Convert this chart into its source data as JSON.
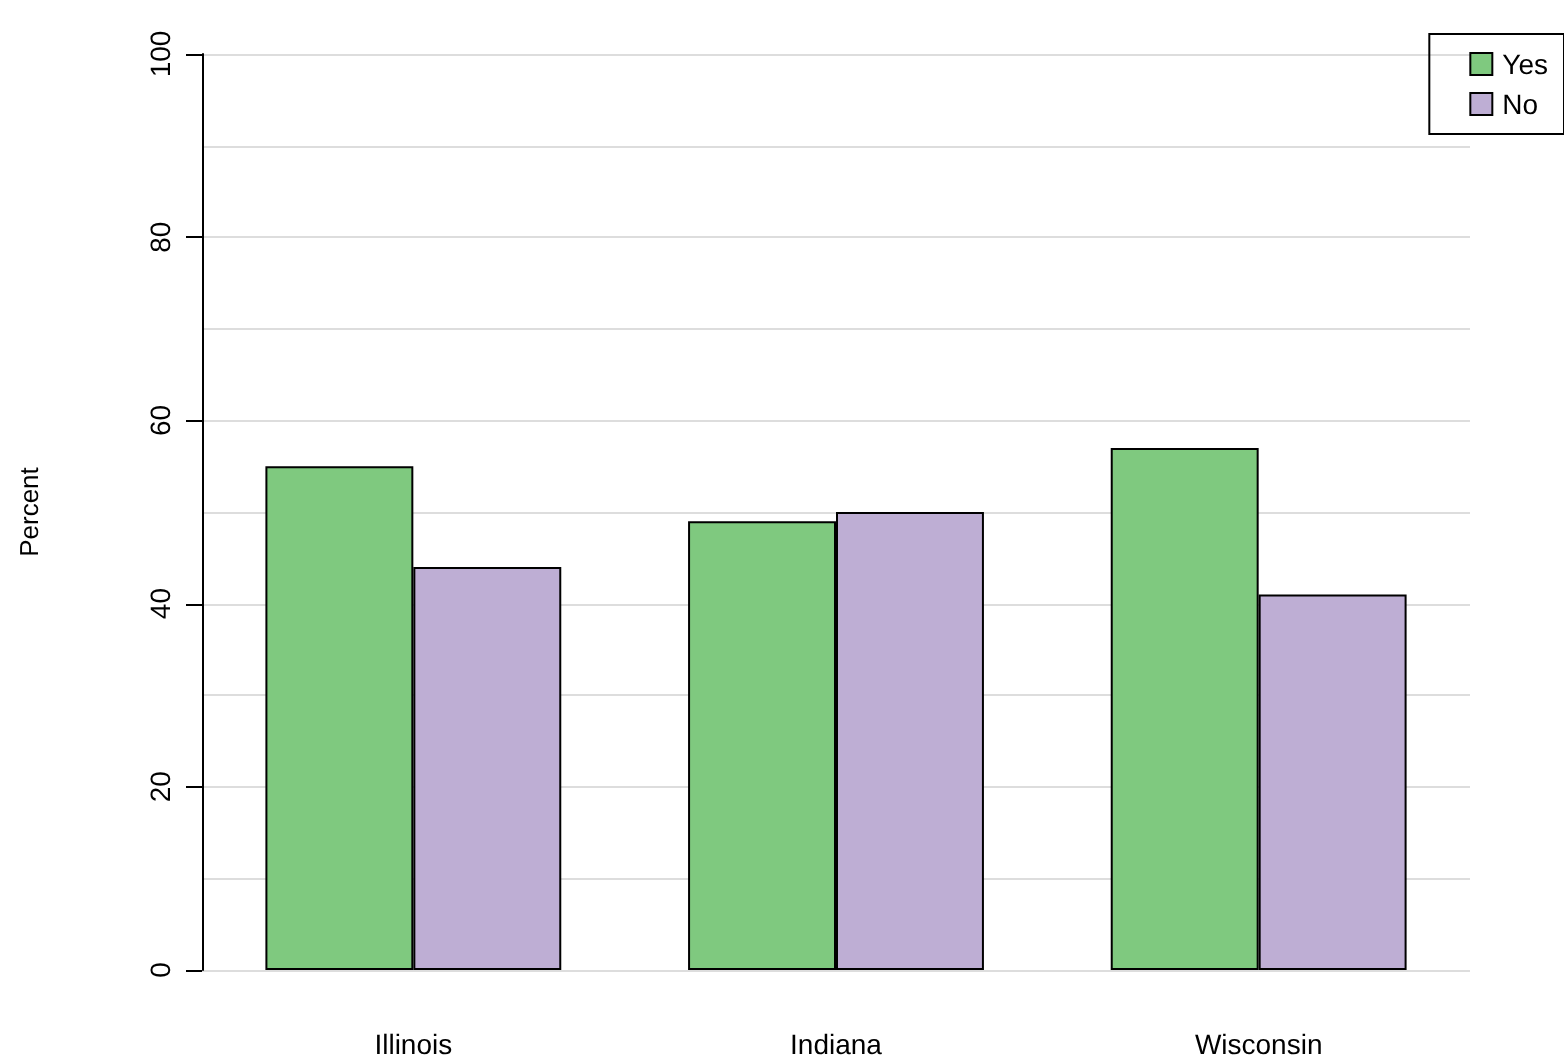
{
  "chart_data": {
    "type": "bar",
    "ylabel": "Percent",
    "categories": [
      "Illinois",
      "Indiana",
      "Wisconsin"
    ],
    "series": [
      {
        "name": "Yes",
        "color": "#7fc97f",
        "values": [
          55,
          49,
          57
        ]
      },
      {
        "name": "No",
        "color": "#beaed4",
        "values": [
          44,
          50,
          41
        ]
      }
    ],
    "ylim": [
      0,
      100
    ],
    "yticks": [
      0,
      {
        "value": 10,
        "label": null
      },
      20,
      {
        "value": 30,
        "label": null
      },
      40,
      {
        "value": 50,
        "label": null
      },
      60,
      {
        "value": 70,
        "label": null
      },
      80,
      {
        "value": 90,
        "label": null
      },
      100
    ],
    "grid": "y",
    "legend": "top right"
  }
}
